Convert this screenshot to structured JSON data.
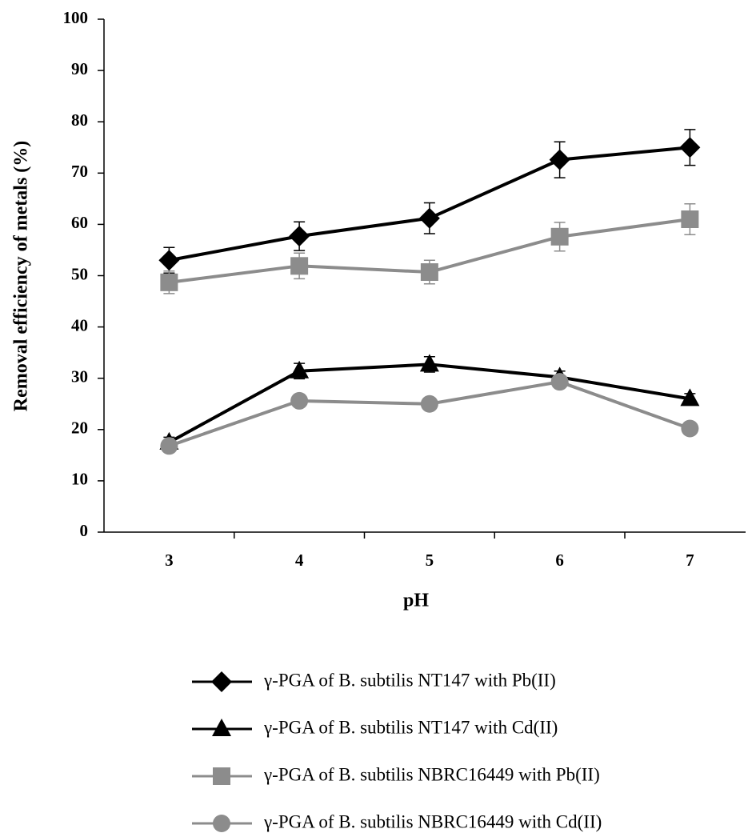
{
  "chart_data": {
    "type": "line",
    "xlabel": "pH",
    "ylabel": "Removal efficiency of metals (%)",
    "categories": [
      "3",
      "4",
      "5",
      "6",
      "7"
    ],
    "ylim": [
      0,
      100
    ],
    "yticks": [
      0,
      10,
      20,
      30,
      40,
      50,
      60,
      70,
      80,
      90,
      100
    ],
    "grid": false,
    "series": [
      {
        "name": "γ-PGA of B. subtilis NT147 with Pb(II)",
        "color": "#000000",
        "marker": "diamond",
        "values": [
          53,
          57.7,
          61.2,
          72.6,
          75
        ],
        "errors": [
          2.5,
          2.8,
          3,
          3.5,
          3.5
        ]
      },
      {
        "name": "γ-PGA of B. subtilis NT147 with Cd(II)",
        "color": "#000000",
        "marker": "triangle",
        "values": [
          17.5,
          31.4,
          32.7,
          30.2,
          26
        ],
        "errors": [
          1,
          1.5,
          1.5,
          1.2,
          1
        ]
      },
      {
        "name": "γ-PGA of B. subtilis NBRC16449 with Pb(II)",
        "color": "#8c8c8c",
        "marker": "square",
        "values": [
          48.7,
          51.9,
          50.7,
          57.6,
          61
        ],
        "errors": [
          2.2,
          2.5,
          2.3,
          2.8,
          3
        ]
      },
      {
        "name": "γ-PGA of B. subtilis NBRC16449 with Cd(II)",
        "color": "#8c8c8c",
        "marker": "circle",
        "values": [
          16.8,
          25.6,
          25,
          29.3,
          20.2
        ],
        "errors": [
          0.8,
          0.8,
          0.8,
          1,
          0.8
        ]
      }
    ]
  }
}
